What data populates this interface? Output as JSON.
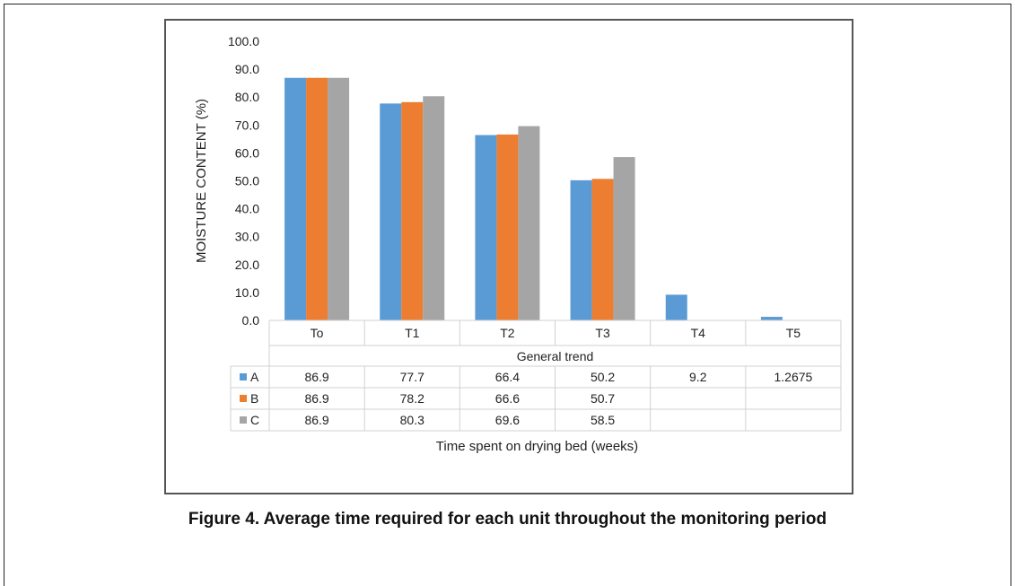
{
  "caption": "Figure 4.  Average time required for each unit throughout the monitoring period",
  "chart_data": {
    "type": "bar",
    "categories": [
      "To",
      "T1",
      "T2",
      "T3",
      "T4",
      "T5"
    ],
    "series": [
      {
        "name": "A",
        "color": "#5b9bd5",
        "values": [
          86.9,
          77.7,
          66.4,
          50.2,
          9.2,
          1.2675
        ],
        "labels": [
          "86.9",
          "77.7",
          "66.4",
          "50.2",
          "9.2",
          "1.2675"
        ]
      },
      {
        "name": "B",
        "color": "#ed7d31",
        "values": [
          86.9,
          78.2,
          66.6,
          50.7,
          null,
          null
        ],
        "labels": [
          "86.9",
          "78.2",
          "66.6",
          "50.7",
          "",
          ""
        ]
      },
      {
        "name": "C",
        "color": "#a5a5a5",
        "values": [
          86.9,
          80.3,
          69.6,
          58.5,
          null,
          null
        ],
        "labels": [
          "86.9",
          "80.3",
          "69.6",
          "58.5",
          "",
          ""
        ]
      }
    ],
    "ylabel": "MOISTURE CONTENT (%)",
    "category_axis_title": "General trend",
    "xlabel": "Time spent on drying bed (weeks)",
    "ylim": [
      0,
      100
    ],
    "yticks": [
      "0.0",
      "10.0",
      "20.0",
      "30.0",
      "40.0",
      "50.0",
      "60.0",
      "70.0",
      "80.0",
      "90.0",
      "100.0"
    ],
    "grid": false,
    "legend": "data-table"
  }
}
